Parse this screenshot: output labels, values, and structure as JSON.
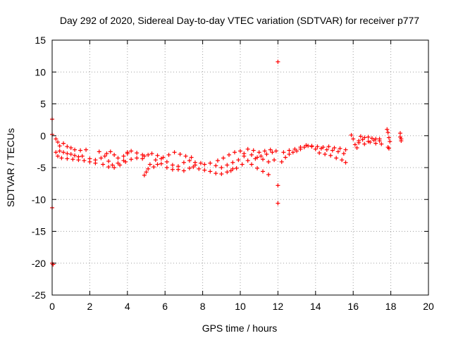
{
  "chart_data": {
    "type": "scatter",
    "title": "Day 292 of 2020, Sidereal Day-to-day VTEC variation (SDTVAR) for receiver p777",
    "xlabel": "GPS time / hours",
    "ylabel": "SDTVAR / TECUs",
    "xlim": [
      0,
      20
    ],
    "ylim": [
      -25,
      15
    ],
    "xticks": [
      0,
      2,
      4,
      6,
      8,
      10,
      12,
      14,
      16,
      18,
      20
    ],
    "yticks": [
      -25,
      -20,
      -15,
      -10,
      -5,
      0,
      5,
      10,
      15
    ],
    "grid": true,
    "marker": "+",
    "color": "#ff0000",
    "series": [
      {
        "name": "p777",
        "points": [
          [
            0.0,
            2.6
          ],
          [
            0.0,
            0.2
          ],
          [
            0.0,
            -11.3
          ],
          [
            0.0,
            -20.0
          ],
          [
            0.05,
            -20.2
          ],
          [
            0.2,
            -0.5
          ],
          [
            0.3,
            -1.0
          ],
          [
            0.4,
            -1.6
          ],
          [
            0.6,
            -1.2
          ],
          [
            0.8,
            -1.7
          ],
          [
            1.0,
            -1.9
          ],
          [
            1.2,
            -2.2
          ],
          [
            1.5,
            -2.3
          ],
          [
            1.8,
            -2.2
          ],
          [
            0.2,
            -2.6
          ],
          [
            0.4,
            -2.4
          ],
          [
            0.6,
            -2.6
          ],
          [
            0.8,
            -2.8
          ],
          [
            1.0,
            -2.9
          ],
          [
            1.2,
            -3.1
          ],
          [
            1.4,
            -3.3
          ],
          [
            1.6,
            -3.2
          ],
          [
            0.3,
            -3.2
          ],
          [
            0.5,
            -3.5
          ],
          [
            0.8,
            -3.6
          ],
          [
            1.1,
            -3.7
          ],
          [
            1.4,
            -3.8
          ],
          [
            1.7,
            -3.9
          ],
          [
            2.0,
            -4.1
          ],
          [
            2.3,
            -4.3
          ],
          [
            2.0,
            -3.6
          ],
          [
            2.3,
            -3.8
          ],
          [
            2.6,
            -3.5
          ],
          [
            2.9,
            -2.8
          ],
          [
            3.1,
            -2.5
          ],
          [
            3.3,
            -3.0
          ],
          [
            3.5,
            -3.5
          ],
          [
            3.8,
            -3.9
          ],
          [
            2.5,
            -2.5
          ],
          [
            2.8,
            -3.2
          ],
          [
            3.0,
            -4.0
          ],
          [
            3.2,
            -4.6
          ],
          [
            3.5,
            -4.3
          ],
          [
            3.8,
            -3.2
          ],
          [
            4.0,
            -2.8
          ],
          [
            2.7,
            -4.5
          ],
          [
            3.0,
            -4.9
          ],
          [
            3.3,
            -5.0
          ],
          [
            3.6,
            -4.6
          ],
          [
            3.9,
            -4.1
          ],
          [
            4.2,
            -3.7
          ],
          [
            4.5,
            -3.5
          ],
          [
            4.8,
            -3.6
          ],
          [
            4.0,
            -2.6
          ],
          [
            4.2,
            -2.4
          ],
          [
            4.5,
            -2.7
          ],
          [
            4.8,
            -3.0
          ],
          [
            4.9,
            -6.2
          ],
          [
            5.0,
            -5.7
          ],
          [
            5.1,
            -5.2
          ],
          [
            5.2,
            -4.5
          ],
          [
            5.4,
            -4.9
          ],
          [
            5.6,
            -4.5
          ],
          [
            4.9,
            -3.2
          ],
          [
            5.1,
            -3.0
          ],
          [
            5.3,
            -2.8
          ],
          [
            5.6,
            -3.1
          ],
          [
            5.9,
            -3.4
          ],
          [
            6.2,
            -3.0
          ],
          [
            6.5,
            -2.6
          ],
          [
            6.8,
            -2.9
          ],
          [
            7.1,
            -3.2
          ],
          [
            7.4,
            -3.4
          ],
          [
            5.5,
            -3.8
          ],
          [
            5.8,
            -4.4
          ],
          [
            6.1,
            -5.0
          ],
          [
            6.4,
            -5.3
          ],
          [
            6.7,
            -4.8
          ],
          [
            7.0,
            -4.2
          ],
          [
            7.3,
            -3.9
          ],
          [
            7.6,
            -4.2
          ],
          [
            5.8,
            -3.6
          ],
          [
            6.1,
            -4.1
          ],
          [
            6.4,
            -4.6
          ],
          [
            6.7,
            -5.3
          ],
          [
            7.0,
            -5.5
          ],
          [
            7.3,
            -5.1
          ],
          [
            7.6,
            -4.6
          ],
          [
            7.9,
            -4.3
          ],
          [
            7.5,
            -4.9
          ],
          [
            7.8,
            -5.2
          ],
          [
            8.1,
            -5.4
          ],
          [
            8.4,
            -5.6
          ],
          [
            8.7,
            -5.9
          ],
          [
            9.0,
            -6.0
          ],
          [
            9.3,
            -5.7
          ],
          [
            9.6,
            -5.2
          ],
          [
            8.1,
            -4.5
          ],
          [
            8.4,
            -4.3
          ],
          [
            8.7,
            -4.7
          ],
          [
            9.0,
            -5.0
          ],
          [
            9.3,
            -4.6
          ],
          [
            9.6,
            -4.2
          ],
          [
            9.9,
            -3.8
          ],
          [
            10.2,
            -3.2
          ],
          [
            8.8,
            -3.9
          ],
          [
            9.1,
            -3.5
          ],
          [
            9.4,
            -3.0
          ],
          [
            9.7,
            -2.6
          ],
          [
            10.0,
            -2.4
          ],
          [
            10.2,
            -2.8
          ],
          [
            9.5,
            -5.5
          ],
          [
            9.8,
            -5.1
          ],
          [
            10.1,
            -4.5
          ],
          [
            10.4,
            -3.9
          ],
          [
            10.6,
            -4.5
          ],
          [
            10.9,
            -5.1
          ],
          [
            11.2,
            -5.6
          ],
          [
            11.5,
            -6.1
          ],
          [
            10.4,
            -2.1
          ],
          [
            10.7,
            -2.3
          ],
          [
            11.0,
            -2.6
          ],
          [
            11.3,
            -2.4
          ],
          [
            11.6,
            -2.2
          ],
          [
            11.9,
            -2.4
          ],
          [
            10.6,
            -3.0
          ],
          [
            10.9,
            -3.4
          ],
          [
            11.2,
            -3.7
          ],
          [
            11.5,
            -4.1
          ],
          [
            11.8,
            -3.8
          ],
          [
            10.8,
            -3.6
          ],
          [
            11.1,
            -3.2
          ],
          [
            11.4,
            -2.9
          ],
          [
            11.7,
            -2.6
          ],
          [
            12.0,
            11.6
          ],
          [
            12.0,
            -7.8
          ],
          [
            12.0,
            -10.6
          ],
          [
            12.2,
            -4.1
          ],
          [
            12.4,
            -3.4
          ],
          [
            12.6,
            -2.9
          ],
          [
            12.8,
            -2.6
          ],
          [
            13.0,
            -2.4
          ],
          [
            13.2,
            -2.1
          ],
          [
            13.4,
            -1.8
          ],
          [
            13.6,
            -1.6
          ],
          [
            13.8,
            -1.7
          ],
          [
            12.3,
            -2.6
          ],
          [
            12.6,
            -2.3
          ],
          [
            12.9,
            -2.1
          ],
          [
            13.2,
            -1.8
          ],
          [
            13.5,
            -1.5
          ],
          [
            13.8,
            -1.6
          ],
          [
            14.1,
            -1.7
          ],
          [
            14.0,
            -2.1
          ],
          [
            14.3,
            -2.0
          ],
          [
            14.6,
            -2.2
          ],
          [
            14.9,
            -2.3
          ],
          [
            15.2,
            -2.5
          ],
          [
            15.5,
            -2.8
          ],
          [
            14.2,
            -2.7
          ],
          [
            14.5,
            -2.9
          ],
          [
            14.8,
            -3.1
          ],
          [
            15.1,
            -3.5
          ],
          [
            15.4,
            -3.8
          ],
          [
            15.6,
            -4.2
          ],
          [
            14.4,
            -1.8
          ],
          [
            14.7,
            -1.7
          ],
          [
            15.0,
            -1.9
          ],
          [
            15.3,
            -2.0
          ],
          [
            15.6,
            -2.2
          ],
          [
            15.9,
            0.1
          ],
          [
            16.0,
            -0.5
          ],
          [
            16.1,
            -1.4
          ],
          [
            16.2,
            -1.9
          ],
          [
            16.3,
            -0.8
          ],
          [
            16.4,
            -0.1
          ],
          [
            16.6,
            -0.3
          ],
          [
            16.8,
            -0.2
          ],
          [
            17.0,
            -0.4
          ],
          [
            17.2,
            -0.5
          ],
          [
            17.4,
            -0.8
          ],
          [
            16.3,
            -1.1
          ],
          [
            16.6,
            -1.3
          ],
          [
            16.9,
            -1.0
          ],
          [
            17.2,
            -1.2
          ],
          [
            17.5,
            -1.3
          ],
          [
            16.5,
            -0.6
          ],
          [
            16.8,
            -0.9
          ],
          [
            17.1,
            -0.7
          ],
          [
            17.4,
            -0.5
          ],
          [
            17.8,
            1.0
          ],
          [
            17.85,
            0.5
          ],
          [
            17.9,
            -0.3
          ],
          [
            17.95,
            -0.9
          ],
          [
            17.85,
            -1.8
          ],
          [
            17.9,
            -2.0
          ],
          [
            18.5,
            0.4
          ],
          [
            18.5,
            -0.2
          ],
          [
            18.55,
            -0.5
          ],
          [
            18.55,
            -0.8
          ]
        ]
      }
    ]
  }
}
